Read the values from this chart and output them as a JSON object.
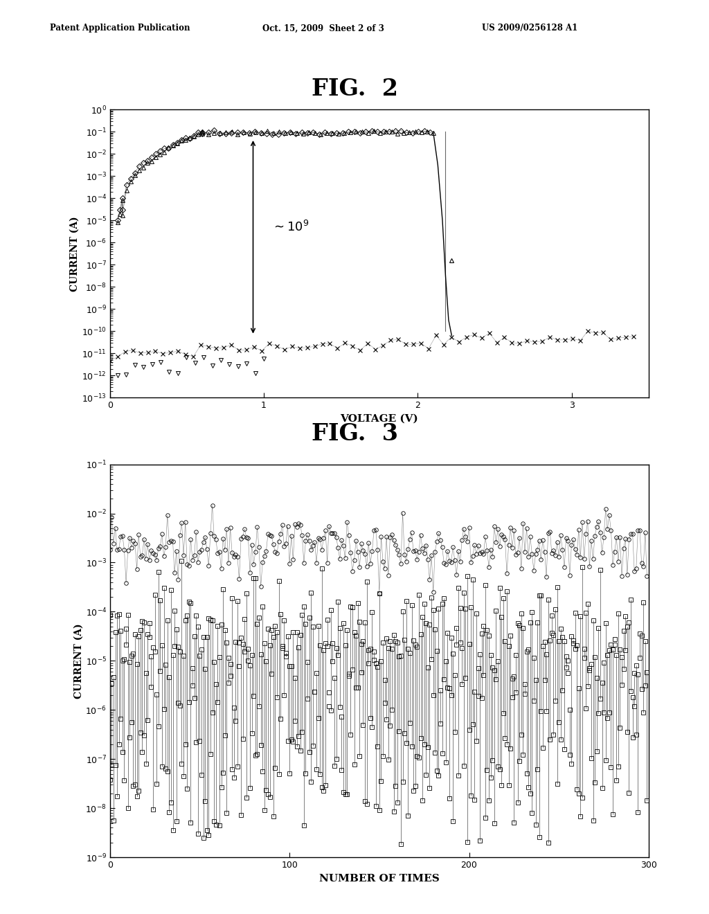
{
  "fig2_title": "FIG.  2",
  "fig3_title": "FIG.  3",
  "header_left": "Patent Application Publication",
  "header_mid": "Oct. 15, 2009  Sheet 2 of 3",
  "header_right": "US 2009/0256128 A1",
  "fig2": {
    "xlabel": "VOLTAGE (V)",
    "ylabel": "CURRENT (A)",
    "xlim": [
      0,
      3.5
    ],
    "ylim_log": [
      -13,
      0
    ]
  },
  "fig3": {
    "xlabel": "NUMBER OF TIMES",
    "ylabel": "CURRENT (A)",
    "xlim": [
      0,
      300
    ],
    "ylim_log": [
      -9,
      -1
    ]
  },
  "bg_color": "#ffffff",
  "text_color": "#000000"
}
